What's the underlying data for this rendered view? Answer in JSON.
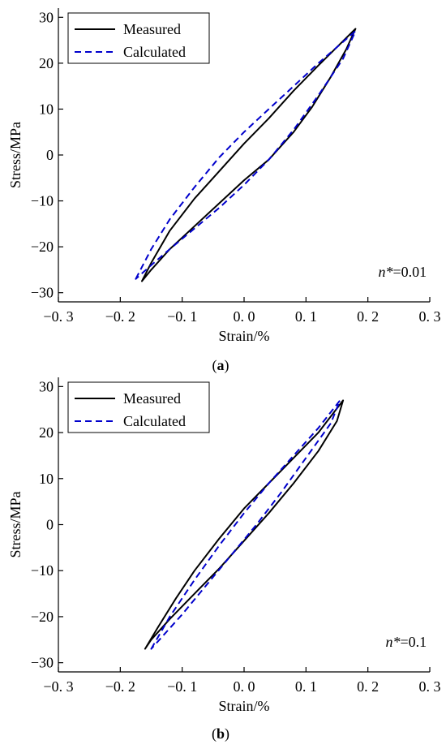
{
  "chart_data": [
    {
      "type": "line",
      "panel": "a",
      "caption": {
        "open": "(",
        "letter": "a",
        "close": ")"
      },
      "xlabel": "Strain/%",
      "ylabel": "Stress/MPa",
      "xlim": [
        -0.3,
        0.3
      ],
      "ylim": [
        -32,
        32
      ],
      "x_ticks": [
        -0.3,
        -0.2,
        -0.1,
        0.0,
        0.1,
        0.2,
        0.3
      ],
      "x_tick_labels": [
        "−0. 3",
        "−0. 2",
        "−0. 1",
        "0. 0",
        "0. 1",
        "0. 2",
        "0. 3"
      ],
      "y_ticks": [
        -30,
        -20,
        -10,
        0,
        10,
        20,
        30
      ],
      "y_tick_labels": [
        "−30",
        "−20",
        "−10",
        "0",
        "10",
        "20",
        "30"
      ],
      "annotation": {
        "symbol": "n*",
        "value": "=0.01"
      },
      "legend": {
        "placement": "top-left"
      },
      "series": [
        {
          "name": "Measured",
          "color": "#000000",
          "dash": "solid",
          "x": [
            -0.165,
            -0.15,
            -0.12,
            -0.08,
            -0.04,
            0.0,
            0.04,
            0.08,
            0.12,
            0.15,
            0.18,
            0.165,
            0.14,
            0.11,
            0.08,
            0.04,
            0.0,
            -0.04,
            -0.08,
            -0.12,
            -0.15,
            -0.165
          ],
          "y": [
            -27.5,
            -23.5,
            -16.5,
            -9.5,
            -3.5,
            2.5,
            8.0,
            14.0,
            19.5,
            23.5,
            27.5,
            23.0,
            17.0,
            10.5,
            5.0,
            -1.0,
            -5.5,
            -10.5,
            -15.5,
            -20.5,
            -25.0,
            -27.5
          ]
        },
        {
          "name": "Calculated",
          "color": "#0000cc",
          "dash": "dashed",
          "x": [
            -0.175,
            -0.15,
            -0.12,
            -0.08,
            -0.04,
            0.0,
            0.04,
            0.08,
            0.12,
            0.15,
            0.18,
            0.16,
            0.12,
            0.08,
            0.04,
            0.0,
            -0.04,
            -0.08,
            -0.12,
            -0.15,
            -0.175
          ],
          "y": [
            -27.0,
            -20.5,
            -14.0,
            -7.0,
            -0.5,
            5.0,
            10.0,
            15.0,
            20.0,
            23.5,
            27.0,
            21.0,
            13.0,
            5.5,
            -1.0,
            -6.5,
            -11.5,
            -16.0,
            -20.5,
            -24.0,
            -27.0
          ]
        }
      ]
    },
    {
      "type": "line",
      "panel": "b",
      "caption": {
        "open": "(",
        "letter": "b",
        "close": ")"
      },
      "xlabel": "Strain/%",
      "ylabel": "Stress/MPa",
      "xlim": [
        -0.3,
        0.3
      ],
      "ylim": [
        -32,
        32
      ],
      "x_ticks": [
        -0.3,
        -0.2,
        -0.1,
        0.0,
        0.1,
        0.2,
        0.3
      ],
      "x_tick_labels": [
        "−0. 3",
        "−0. 2",
        "−0. 1",
        "0. 0",
        "0. 1",
        "0. 2",
        "0. 3"
      ],
      "y_ticks": [
        -30,
        -20,
        -10,
        0,
        10,
        20,
        30
      ],
      "y_tick_labels": [
        "−30",
        "−20",
        "−10",
        "0",
        "10",
        "20",
        "30"
      ],
      "annotation": {
        "symbol": "n*",
        "value": "=0.1"
      },
      "legend": {
        "placement": "top-left"
      },
      "series": [
        {
          "name": "Measured",
          "color": "#000000",
          "dash": "solid",
          "x": [
            -0.16,
            -0.14,
            -0.11,
            -0.08,
            -0.04,
            0.0,
            0.04,
            0.08,
            0.12,
            0.16,
            0.15,
            0.12,
            0.08,
            0.04,
            0.0,
            -0.04,
            -0.08,
            -0.12,
            -0.15,
            -0.16
          ],
          "y": [
            -27.0,
            -22.5,
            -16.0,
            -10.0,
            -3.0,
            3.5,
            9.0,
            14.5,
            20.0,
            27.0,
            22.5,
            16.0,
            9.0,
            2.5,
            -3.5,
            -9.5,
            -15.0,
            -20.5,
            -25.0,
            -27.0
          ]
        },
        {
          "name": "Calculated",
          "color": "#0000cc",
          "dash": "dashed",
          "x": [
            -0.15,
            -0.12,
            -0.08,
            -0.04,
            0.0,
            0.04,
            0.08,
            0.12,
            0.155,
            0.14,
            0.1,
            0.06,
            0.02,
            -0.02,
            -0.06,
            -0.1,
            -0.13,
            -0.15
          ],
          "y": [
            -27.0,
            -20.0,
            -12.0,
            -4.5,
            2.5,
            9.0,
            15.0,
            21.0,
            27.0,
            22.0,
            14.5,
            7.0,
            0.0,
            -6.5,
            -13.0,
            -19.5,
            -24.0,
            -27.0
          ]
        }
      ]
    }
  ]
}
